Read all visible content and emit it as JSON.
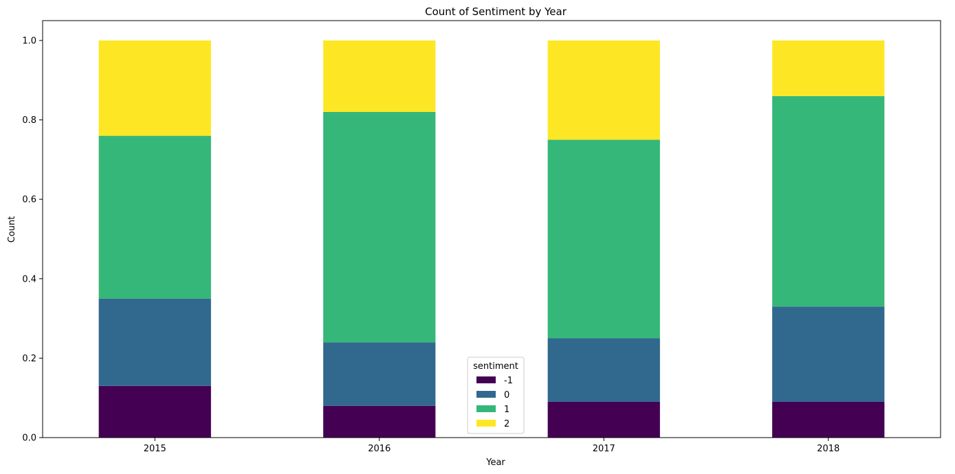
{
  "chart_data": {
    "type": "bar",
    "stacked": true,
    "title": "Count of Sentiment by Year",
    "xlabel": "Year",
    "ylabel": "Count",
    "categories": [
      "2015",
      "2016",
      "2017",
      "2018"
    ],
    "ylim": [
      0,
      1.05
    ],
    "yticks": [
      "0.0",
      "0.2",
      "0.4",
      "0.6",
      "0.8",
      "1.0"
    ],
    "grid": false,
    "legend": {
      "title": "sentiment",
      "placement": "bottom-center"
    },
    "series": [
      {
        "name": "-1",
        "color": "#440154",
        "values": [
          0.13,
          0.08,
          0.09,
          0.09
        ]
      },
      {
        "name": "0",
        "color": "#31688e",
        "values": [
          0.22,
          0.16,
          0.16,
          0.24
        ]
      },
      {
        "name": "1",
        "color": "#35b779",
        "values": [
          0.41,
          0.58,
          0.5,
          0.53
        ]
      },
      {
        "name": "2",
        "color": "#fde725",
        "values": [
          0.24,
          0.18,
          0.25,
          0.14
        ]
      }
    ]
  }
}
